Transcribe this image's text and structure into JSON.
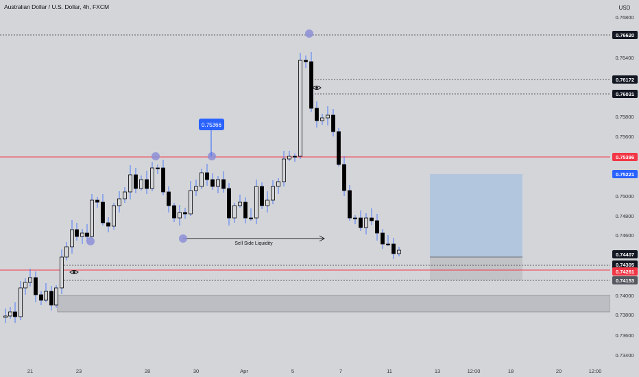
{
  "header": {
    "symbol_title": "Australian Dollar / U.S. Dollar, 4h, FXCM"
  },
  "price_axis": {
    "currency": "USD",
    "ticks": [
      "0.76800",
      "0.76400",
      "0.75800",
      "0.75600",
      "0.75000",
      "0.74800",
      "0.74600",
      "0.74000",
      "0.73800",
      "0.73600",
      "0.73400"
    ],
    "badges": [
      {
        "label": "0.76620",
        "style": "dark"
      },
      {
        "label": "0.76172",
        "style": "dark"
      },
      {
        "label": "0.76031",
        "style": "dark"
      },
      {
        "label": "0.75396",
        "style": "red"
      },
      {
        "label": "0.75221",
        "style": "blue"
      },
      {
        "label": "0.74407",
        "style": "dark"
      },
      {
        "label": "0.74305",
        "style": "dark"
      },
      {
        "label": "0.74261",
        "style": "red"
      },
      {
        "label": "0.74153",
        "style": "gray"
      }
    ]
  },
  "time_axis": {
    "ticks": [
      "21",
      "23",
      "28",
      "30",
      "Apr",
      "5",
      "7",
      "11",
      "13",
      "12:00",
      "18",
      "20",
      "12:00"
    ]
  },
  "annotations": {
    "price_callout": "0.75366",
    "liquidity_label": "Sell Side Liquidity"
  },
  "colors": {
    "background": "#d4d5d9",
    "bull_body": "#d4d5d9",
    "bear_body": "#000000",
    "wick": "#2962ff",
    "red_line": "#f23645",
    "blue_badge": "#2962ff",
    "marker": "#8c8fd6",
    "target_box": "#b2c6de",
    "zone_box": "#bdbec3"
  },
  "icons": [
    "eye-icon"
  ]
}
